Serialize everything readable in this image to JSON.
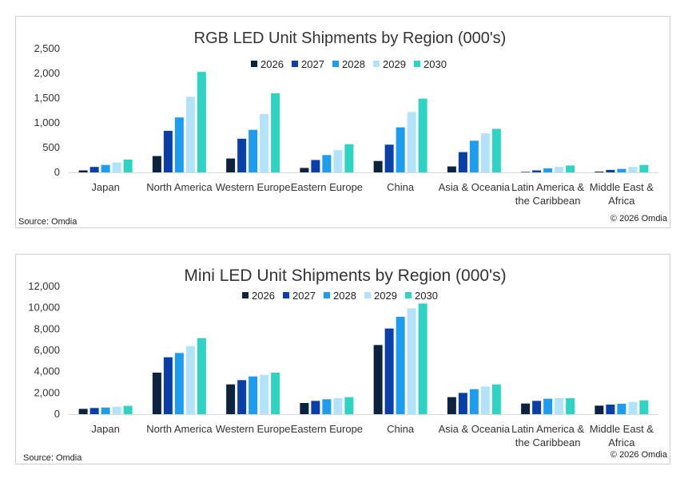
{
  "chart_data": [
    {
      "type": "bar",
      "title": "RGB LED Unit Shipments by Region (000's)",
      "categories": [
        "Japan",
        "North America",
        "Western Europe",
        "Eastern Europe",
        "China",
        "Asia & Oceania",
        "Latin America & the Caribbean",
        "Middle East & Africa"
      ],
      "series": [
        {
          "name": "2026",
          "color": "#0c2340",
          "values": [
            40,
            330,
            280,
            90,
            230,
            120,
            10,
            15
          ]
        },
        {
          "name": "2027",
          "color": "#0a3fa8",
          "values": [
            110,
            840,
            680,
            250,
            560,
            410,
            40,
            50
          ]
        },
        {
          "name": "2028",
          "color": "#1e9df0",
          "values": [
            150,
            1110,
            860,
            350,
            910,
            640,
            80,
            70
          ]
        },
        {
          "name": "2029",
          "color": "#b3e3fb",
          "values": [
            200,
            1530,
            1180,
            450,
            1220,
            790,
            110,
            110
          ]
        },
        {
          "name": "2030",
          "color": "#2fd3c4",
          "values": [
            260,
            2030,
            1600,
            570,
            1490,
            880,
            140,
            150
          ]
        }
      ],
      "ylim": [
        0,
        2500
      ],
      "yticks": [
        "0",
        "500",
        "1,000",
        "1,500",
        "2,000",
        "2,500"
      ],
      "legend": "top",
      "grid": false,
      "source": "Source: Omdia",
      "copyright": "© 2026 Omdia"
    },
    {
      "type": "bar",
      "title": "Mini LED Unit Shipments by Region (000's)",
      "categories": [
        "Japan",
        "North America",
        "Western Europe",
        "Eastern Europe",
        "China",
        "Asia & Oceania",
        "Latin America & the Caribbean",
        "Middle East & Africa"
      ],
      "series": [
        {
          "name": "2026",
          "color": "#0c2340",
          "values": [
            500,
            3900,
            2800,
            1050,
            6500,
            1600,
            1000,
            800
          ]
        },
        {
          "name": "2027",
          "color": "#0a3fa8",
          "values": [
            580,
            5350,
            3200,
            1250,
            8050,
            2000,
            1250,
            900
          ]
        },
        {
          "name": "2028",
          "color": "#1e9df0",
          "values": [
            620,
            5750,
            3550,
            1400,
            9150,
            2350,
            1450,
            980
          ]
        },
        {
          "name": "2029",
          "color": "#b3e3fb",
          "values": [
            700,
            6400,
            3700,
            1500,
            9950,
            2600,
            1500,
            1150
          ]
        },
        {
          "name": "2030",
          "color": "#2fd3c4",
          "values": [
            780,
            7150,
            3900,
            1600,
            10400,
            2800,
            1500,
            1300
          ]
        }
      ],
      "ylim": [
        0,
        12000
      ],
      "yticks": [
        "0",
        "2,000",
        "4,000",
        "6,000",
        "8,000",
        "10,000",
        "12,000"
      ],
      "legend": "top",
      "grid": false,
      "source": "Source: Omdia",
      "copyright": "© 2026 Omdia"
    }
  ]
}
